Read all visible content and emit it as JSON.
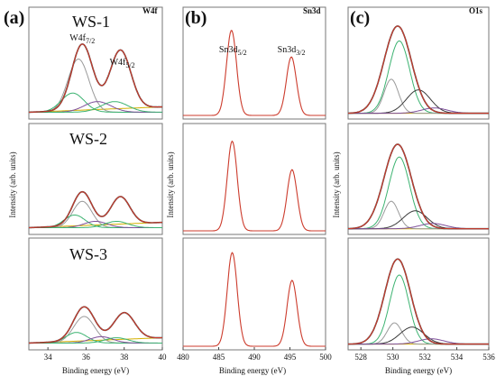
{
  "figure": {
    "panel_letters": [
      "(a)",
      "(b)",
      "(c)"
    ],
    "panel_titles": [
      "W4f",
      "Sn3d",
      "O1s"
    ],
    "ylabel": "Intensity (arb. units)",
    "xlabel": "Binding energy (eV)",
    "sample_labels": [
      "WS-1",
      "WS-2",
      "WS-3"
    ]
  },
  "colors": {
    "envelope": "#cc3b2c",
    "fit_sum": "#3a3a3a",
    "component_primary": "#3cb371",
    "component_secondary": "#9a9a9a",
    "component_tertiary": "#7e4f9a",
    "baseline": "#d4b000",
    "frame": "#777777"
  },
  "chart_data": [
    {
      "type": "line",
      "title": "W4f",
      "xlabel": "Binding energy (eV)",
      "ylabel": "Intensity (arb. units)",
      "xlim": [
        33,
        40
      ],
      "x_ticks": [
        34,
        36,
        38,
        40
      ],
      "peak_labels": [
        {
          "text": "W4f7/2",
          "x": 35.8
        },
        {
          "text": "W4f5/2",
          "x": 37.9
        }
      ],
      "rows": [
        {
          "sample": "WS-1",
          "peaks": [
            {
              "center": 35.8,
              "height": 0.62,
              "width": 0.55
            },
            {
              "center": 37.8,
              "height": 0.55,
              "width": 0.55
            }
          ],
          "components": [
            {
              "color": "component_secondary",
              "center": 35.6,
              "height": 0.5,
              "width": 0.55
            },
            {
              "color": "component_primary",
              "center": 35.3,
              "height": 0.18,
              "width": 0.6
            },
            {
              "color": "component_tertiary",
              "center": 36.6,
              "height": 0.1,
              "width": 0.7
            },
            {
              "color": "component_primary",
              "center": 37.5,
              "height": 0.1,
              "width": 0.7
            }
          ]
        },
        {
          "sample": "WS-2",
          "peaks": [
            {
              "center": 35.8,
              "height": 0.32,
              "width": 0.5
            },
            {
              "center": 37.8,
              "height": 0.26,
              "width": 0.5
            }
          ],
          "components": [
            {
              "color": "component_secondary",
              "center": 35.8,
              "height": 0.25,
              "width": 0.5
            },
            {
              "color": "component_primary",
              "center": 35.4,
              "height": 0.12,
              "width": 0.55
            },
            {
              "color": "component_tertiary",
              "center": 36.5,
              "height": 0.06,
              "width": 0.6
            },
            {
              "color": "component_primary",
              "center": 37.6,
              "height": 0.06,
              "width": 0.6
            }
          ]
        },
        {
          "sample": "WS-3",
          "peaks": [
            {
              "center": 35.9,
              "height": 0.32,
              "width": 0.55
            },
            {
              "center": 38.0,
              "height": 0.25,
              "width": 0.55
            }
          ],
          "components": [
            {
              "color": "component_secondary",
              "center": 35.9,
              "height": 0.25,
              "width": 0.55
            },
            {
              "color": "component_primary",
              "center": 35.5,
              "height": 0.1,
              "width": 0.55
            },
            {
              "color": "component_tertiary",
              "center": 36.8,
              "height": 0.06,
              "width": 0.6
            },
            {
              "color": "component_primary",
              "center": 37.6,
              "height": 0.05,
              "width": 0.6
            }
          ]
        }
      ]
    },
    {
      "type": "line",
      "title": "Sn3d",
      "xlabel": "Binding energy (eV)",
      "ylabel": "Intensity (arb. units)",
      "xlim": [
        480,
        500
      ],
      "x_ticks": [
        480,
        485,
        490,
        495,
        500
      ],
      "peak_labels": [
        {
          "text": "Sn3d5/2",
          "x": 487.0
        },
        {
          "text": "Sn3d3/2",
          "x": 495.2
        }
      ],
      "rows": [
        {
          "sample": "WS-1",
          "peaks": [
            {
              "center": 486.8,
              "height": 0.8,
              "width": 0.7
            },
            {
              "center": 495.2,
              "height": 0.55,
              "width": 0.7
            }
          ],
          "components": []
        },
        {
          "sample": "WS-2",
          "peaks": [
            {
              "center": 486.9,
              "height": 0.85,
              "width": 0.7
            },
            {
              "center": 495.3,
              "height": 0.58,
              "width": 0.7
            }
          ],
          "components": []
        },
        {
          "sample": "WS-3",
          "peaks": [
            {
              "center": 486.9,
              "height": 0.88,
              "width": 0.7
            },
            {
              "center": 495.3,
              "height": 0.62,
              "width": 0.7
            }
          ],
          "components": []
        }
      ]
    },
    {
      "type": "line",
      "title": "O1s",
      "xlabel": "Binding energy (eV)",
      "ylabel": "Intensity (arb. units)",
      "xlim": [
        527.2,
        536
      ],
      "x_ticks": [
        528,
        530,
        532,
        534,
        536
      ],
      "peak_labels": [],
      "rows": [
        {
          "sample": "WS-1",
          "peaks": [
            {
              "center": 530.3,
              "height": 0.82,
              "width": 0.85
            }
          ],
          "components": [
            {
              "color": "component_primary",
              "center": 530.4,
              "height": 0.68,
              "width": 0.65
            },
            {
              "color": "component_secondary",
              "center": 529.9,
              "height": 0.32,
              "width": 0.45
            },
            {
              "color": "fit_sum",
              "center": 531.6,
              "height": 0.22,
              "width": 0.75
            },
            {
              "color": "component_tertiary",
              "center": 532.6,
              "height": 0.05,
              "width": 0.8
            }
          ]
        },
        {
          "sample": "WS-2",
          "peaks": [
            {
              "center": 530.3,
              "height": 0.8,
              "width": 0.85
            }
          ],
          "components": [
            {
              "color": "component_primary",
              "center": 530.4,
              "height": 0.68,
              "width": 0.65
            },
            {
              "color": "component_secondary",
              "center": 529.9,
              "height": 0.26,
              "width": 0.45
            },
            {
              "color": "fit_sum",
              "center": 531.4,
              "height": 0.17,
              "width": 0.75
            },
            {
              "color": "component_tertiary",
              "center": 532.5,
              "height": 0.05,
              "width": 0.8
            }
          ]
        },
        {
          "sample": "WS-3",
          "peaks": [
            {
              "center": 530.3,
              "height": 0.8,
              "width": 0.8
            }
          ],
          "components": [
            {
              "color": "component_primary",
              "center": 530.4,
              "height": 0.65,
              "width": 0.6
            },
            {
              "color": "component_secondary",
              "center": 530.1,
              "height": 0.2,
              "width": 0.45
            },
            {
              "color": "fit_sum",
              "center": 531.2,
              "height": 0.16,
              "width": 0.75
            },
            {
              "color": "component_tertiary",
              "center": 532.4,
              "height": 0.05,
              "width": 0.8
            }
          ]
        }
      ]
    }
  ]
}
